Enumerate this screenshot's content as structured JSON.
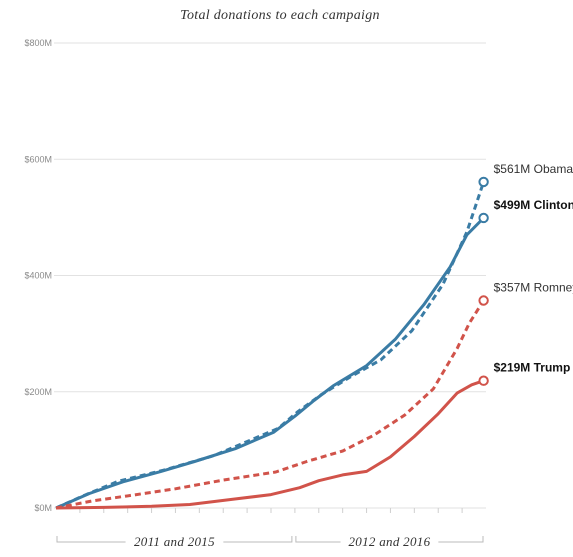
{
  "chart_data": {
    "type": "line",
    "title": "Total donations to each campaign",
    "y_ticks": [
      "$800M",
      "$600M",
      "$400M",
      "$200M",
      "$0M"
    ],
    "y_tick_values": [
      800,
      600,
      400,
      200,
      0
    ],
    "ylim": [
      0,
      800
    ],
    "x_periods": [
      {
        "label": "2011 and 2015",
        "range": [
          0,
          10
        ]
      },
      {
        "label": "2012 and 2016",
        "range": [
          10,
          18
        ]
      }
    ],
    "xlim": [
      0,
      18
    ],
    "grid": true,
    "series": [
      {
        "name": "Obama",
        "end_label": "$561M Obama",
        "bold": false,
        "color": "#3a7ca5",
        "dashed": true,
        "points": [
          [
            0,
            0
          ],
          [
            1.2,
            22
          ],
          [
            2.6,
            46
          ],
          [
            4.5,
            65
          ],
          [
            6.6,
            90
          ],
          [
            9.3,
            137
          ],
          [
            10.1,
            165
          ],
          [
            11.1,
            195
          ],
          [
            12.3,
            225
          ],
          [
            13.6,
            255
          ],
          [
            14.9,
            305
          ],
          [
            16.2,
            385
          ],
          [
            17.2,
            475
          ],
          [
            17.9,
            561
          ]
        ]
      },
      {
        "name": "Clinton",
        "end_label": "$499M Clinton",
        "bold": true,
        "color": "#3a7ca5",
        "dashed": false,
        "points": [
          [
            0,
            0
          ],
          [
            1.4,
            25
          ],
          [
            2.8,
            45
          ],
          [
            4.4,
            63
          ],
          [
            5.8,
            80
          ],
          [
            7.5,
            102
          ],
          [
            9.1,
            130
          ],
          [
            10.0,
            158
          ],
          [
            10.8,
            185
          ],
          [
            11.6,
            210
          ],
          [
            13.0,
            245
          ],
          [
            14.2,
            290
          ],
          [
            15.4,
            350
          ],
          [
            16.5,
            415
          ],
          [
            17.2,
            470
          ],
          [
            17.9,
            499
          ]
        ]
      },
      {
        "name": "Romney",
        "end_label": "$357M Romney",
        "bold": false,
        "color": "#d1534a",
        "dashed": true,
        "points": [
          [
            0,
            0
          ],
          [
            1.5,
            12
          ],
          [
            3.2,
            22
          ],
          [
            5.0,
            33
          ],
          [
            7.0,
            48
          ],
          [
            9.2,
            62
          ],
          [
            10.5,
            80
          ],
          [
            12.0,
            98
          ],
          [
            13.3,
            125
          ],
          [
            14.6,
            160
          ],
          [
            15.8,
            205
          ],
          [
            16.8,
            275
          ],
          [
            17.3,
            318
          ],
          [
            17.9,
            357
          ]
        ]
      },
      {
        "name": "Trump",
        "end_label": "$219M Trump",
        "bold": true,
        "color": "#d1534a",
        "dashed": false,
        "points": [
          [
            0,
            0
          ],
          [
            2,
            1
          ],
          [
            4,
            3
          ],
          [
            5.6,
            6
          ],
          [
            7.4,
            15
          ],
          [
            9.0,
            23
          ],
          [
            10.2,
            35
          ],
          [
            11.0,
            47
          ],
          [
            12.0,
            57
          ],
          [
            13.0,
            63
          ],
          [
            14.0,
            88
          ],
          [
            15.0,
            123
          ],
          [
            16.0,
            162
          ],
          [
            16.8,
            198
          ],
          [
            17.4,
            212
          ],
          [
            17.9,
            219
          ]
        ]
      }
    ]
  }
}
